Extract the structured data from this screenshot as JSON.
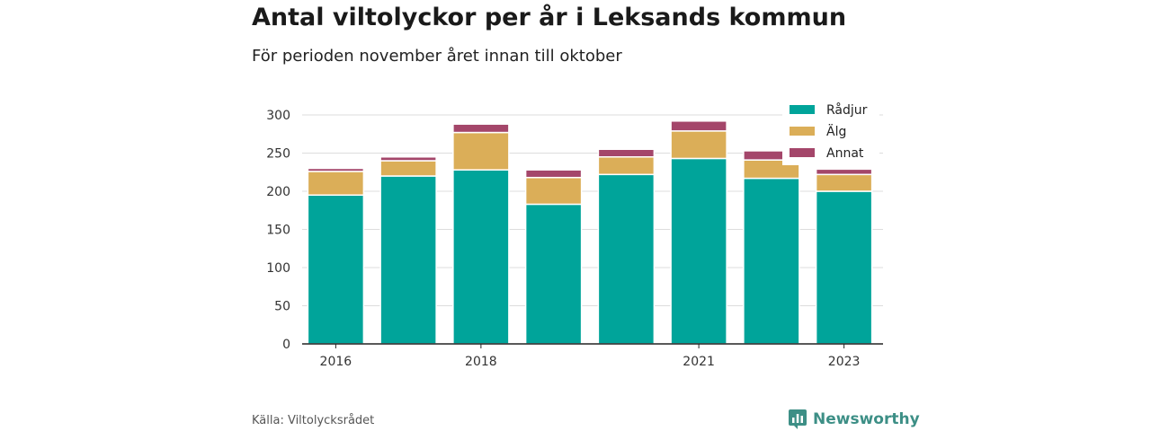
{
  "header": {
    "title": "Antal viltolyckor per år i Leksands kommun",
    "subtitle": "För perioden november året innan till oktober"
  },
  "footer": {
    "source": "Källa: Viltolycksrådet",
    "brand": "Newsworthy"
  },
  "chart_data": {
    "type": "bar",
    "stacked": true,
    "x": [
      2016,
      2017,
      2018,
      2019,
      2020,
      2021,
      2022,
      2023
    ],
    "x_tick_labels": [
      {
        "x": 2016,
        "label": "2016"
      },
      {
        "x": 2018,
        "label": "2018"
      },
      {
        "x": 2021,
        "label": "2021"
      },
      {
        "x": 2023,
        "label": "2023"
      }
    ],
    "series": [
      {
        "name": "Rådjur",
        "color": "#00a49a",
        "values": [
          195,
          220,
          228,
          183,
          222,
          243,
          217,
          200
        ]
      },
      {
        "name": "Älg",
        "color": "#dbae58",
        "values": [
          31,
          20,
          49,
          35,
          23,
          36,
          24,
          22
        ]
      },
      {
        "name": "Annat",
        "color": "#a4466a",
        "values": [
          4,
          5,
          11,
          10,
          10,
          13,
          12,
          7
        ]
      }
    ],
    "ylim": [
      0,
      300
    ],
    "y_ticks": [
      0,
      50,
      100,
      150,
      200,
      250,
      300
    ],
    "grid": true,
    "legend_position": "top-right",
    "xlabel": "",
    "ylabel": ""
  }
}
